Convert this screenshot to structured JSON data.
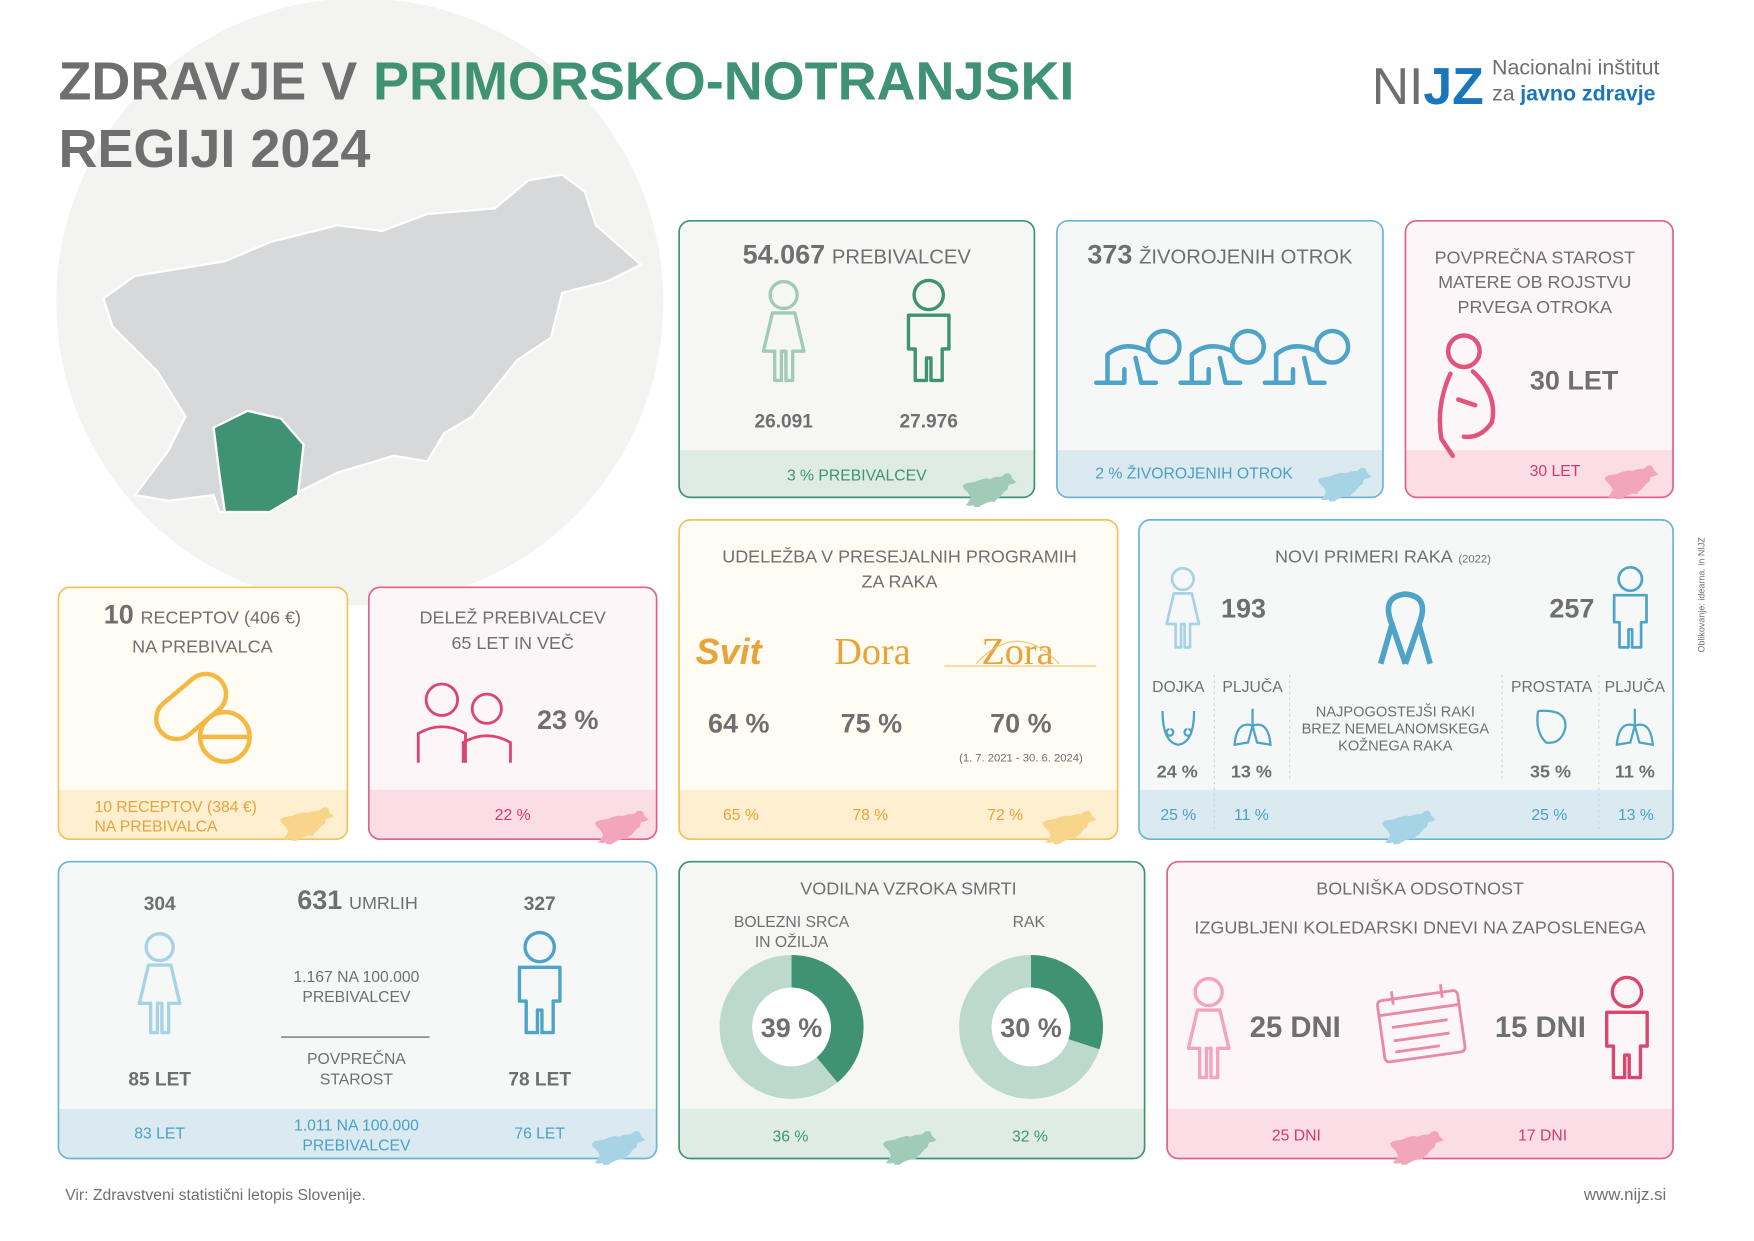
{
  "header": {
    "title_a": "ZDRAVJE V",
    "title_b": "PRIMORSKO-NOTRANJSKI",
    "title_c": "REGIJI 2024"
  },
  "logo": {
    "mark_a": "NI",
    "mark_b": "JZ",
    "line1": "Nacionalni inštitut",
    "line2_a": "za",
    "line2_b": "javno zdravje"
  },
  "population": {
    "total": "54.067",
    "total_label": "PREBIVALCEV",
    "women": "26.091",
    "men": "27.976",
    "slovenia": "3 % PREBIVALCEV"
  },
  "births": {
    "total": "373",
    "total_label": "ŽIVOROJENIH OTROK",
    "slovenia": "2 %  ŽIVOROJENIH OTROK"
  },
  "mother_age": {
    "title": [
      "POVPREČNA STAROST",
      "MATERE OB ROJSTVU",
      "PRVEGA OTROKA"
    ],
    "value": "30 LET",
    "slovenia": "30 LET"
  },
  "screening": {
    "title": [
      "UDELEŽBA V PRESEJALNIH PROGRAMIH",
      "ZA RAKA"
    ],
    "programs": [
      {
        "name": "Svit",
        "value": "64 %",
        "slovenia": "65 %"
      },
      {
        "name": "Dora",
        "value": "75 %",
        "slovenia": "78 %"
      },
      {
        "name": "Zora",
        "value": "70 %",
        "period": "(1. 7. 2021 - 30. 6. 2024)",
        "slovenia": "72 %"
      }
    ]
  },
  "cancer": {
    "title": "NOVI PRIMERI RAKA",
    "year": "(2022)",
    "women_total": "193",
    "men_total": "257",
    "note": [
      "NAJPOGOSTEJŠI RAKI",
      "BREZ NEMELANOMSKEGA",
      "KOŽNEGA RAKA"
    ],
    "sites": [
      {
        "name": "DOJKA",
        "value": "24 %",
        "slovenia": "25 %"
      },
      {
        "name": "PLJUČA",
        "value": "13 %",
        "slovenia": "11 %"
      },
      {
        "name": "PROSTATA",
        "value": "35 %",
        "slovenia": "25 %"
      },
      {
        "name": "PLJUČA",
        "value": "11 %",
        "slovenia": "13 %"
      }
    ]
  },
  "prescriptions": {
    "count": "10",
    "lines": [
      "RECEPTOV (406 €)",
      "NA PREBIVALCA"
    ],
    "slovenia": [
      "10 RECEPTOV (384 €)",
      "NA PREBIVALCA"
    ]
  },
  "elderly": {
    "title": [
      "DELEŽ PREBIVALCEV",
      "65 LET IN VEČ"
    ],
    "value": "23 %",
    "slovenia": "22 %"
  },
  "deaths": {
    "total": "631",
    "total_label": "UMRLIH",
    "women": "304",
    "men": "327",
    "rate": [
      "1.167 NA 100.000",
      "PREBIVALCEV"
    ],
    "age_label": [
      "POVPREČNA",
      "STAROST"
    ],
    "women_age": "85 LET",
    "men_age": "78 LET",
    "slovenia": {
      "women_age": "83 LET",
      "rate": [
        "1.011 NA 100.000",
        "PREBIVALCEV"
      ],
      "men_age": "76 LET"
    }
  },
  "causes": {
    "title": "VODILNA VZROKA SMRTI",
    "items": [
      {
        "name": [
          "BOLEZNI SRCA",
          "IN OŽILJA"
        ],
        "value": 39,
        "label": "39 %",
        "slovenia": "36 %"
      },
      {
        "name": [
          "RAK"
        ],
        "value": 30,
        "label": "30 %",
        "slovenia": "32 %"
      }
    ]
  },
  "sick_leave": {
    "title": "BOLNIŠKA ODSOTNOST",
    "subtitle": "IZGUBLJENI KOLEDARSKI DNEVI NA ZAPOSLENEGA",
    "women": "25 DNI",
    "men": "15 DNI",
    "slovenia_women": "25 DNI",
    "slovenia_men": "17 DNI"
  },
  "footer": {
    "source": "Vir: Zdravstveni statistični letopis Slovenije.",
    "url": "www.nijz.si",
    "credit": "Oblikovanje: idearna. in NIJZ"
  }
}
